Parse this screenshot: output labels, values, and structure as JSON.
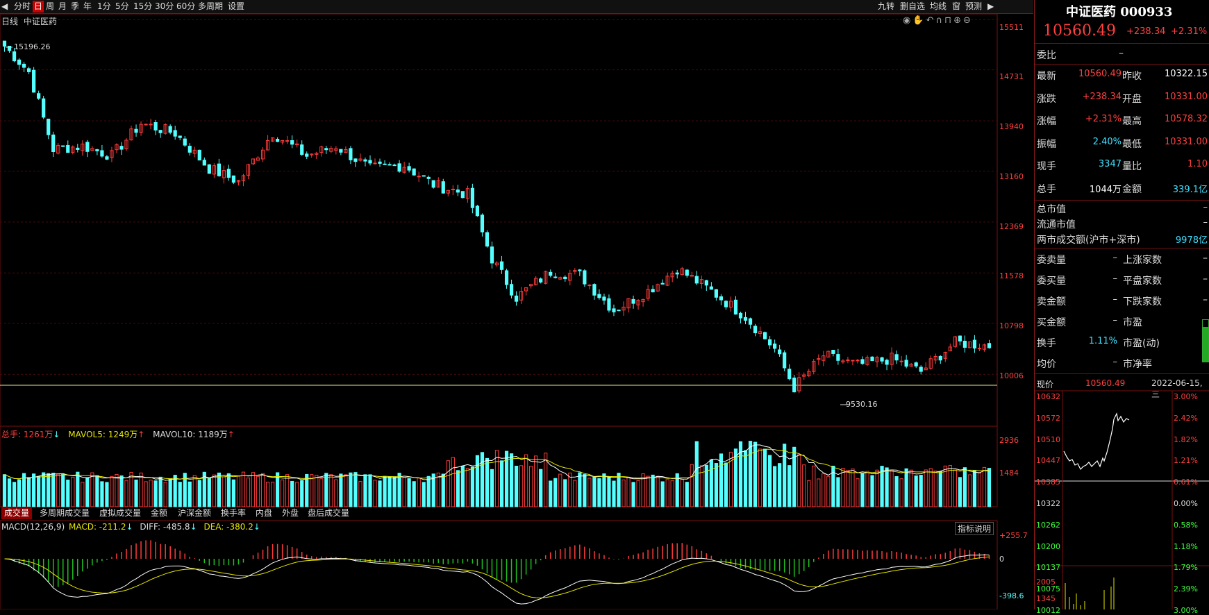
{
  "toolbar": {
    "items": [
      "分时",
      "日",
      "周",
      "月",
      "季",
      "年",
      "1分",
      "5分",
      "15分",
      "30分",
      "60分",
      "多周期",
      "设置"
    ],
    "active_index": 1,
    "right_items": [
      "九转",
      "删自选",
      "均线",
      "窗",
      "预测"
    ]
  },
  "chart": {
    "period_label": "日线",
    "index_name": "中证医药",
    "price_axis": [
      "15511",
      "14731",
      "13940",
      "13160",
      "12369",
      "11578",
      "10798",
      "10006"
    ],
    "high_label": "15196.26",
    "low_label": "9530.16",
    "ylim": [
      9200,
      15600
    ]
  },
  "volume": {
    "total": "总手: 1261万",
    "mavol5": "MAVOL5: 1249万",
    "mavol10": "MAVOL10: 1189万",
    "axis": [
      "2936",
      "1484"
    ]
  },
  "bottom_tabs": [
    "成交量",
    "多周期成交量",
    "虚拟成交量",
    "金额",
    "沪深金额",
    "换手率",
    "内盘",
    "外盘",
    "盘后成交量"
  ],
  "macd": {
    "label": "MACD(12,26,9)",
    "macd_val": "MACD: -211.2",
    "diff": "DIFF: -485.8",
    "dea": "DEA: -380.2",
    "explain": "指标说明",
    "axis": [
      "+255.7",
      "0",
      "-398.6"
    ]
  },
  "quote": {
    "name": "中证医药 000933",
    "price": "10560.49",
    "change": "+238.34",
    "pct": "+2.31%",
    "weibi_label": "委比",
    "weibi_val": "–",
    "rows": [
      {
        "l1": "最新",
        "v1": "10560.49",
        "l2": "昨收",
        "v2": "10322.15",
        "c1": "#ff4040",
        "c2": "#ffffff"
      },
      {
        "l1": "涨跌",
        "v1": "+238.34",
        "l2": "开盘",
        "v2": "10331.00",
        "c1": "#ff4040",
        "c2": "#ff4040"
      },
      {
        "l1": "涨幅",
        "v1": "+2.31%",
        "l2": "最高",
        "v2": "10578.32",
        "c1": "#ff4040",
        "c2": "#ff4040"
      },
      {
        "l1": "振幅",
        "v1": "2.40%",
        "l2": "最低",
        "v2": "10331.00",
        "c1": "#40e0ff",
        "c2": "#ff4040"
      },
      {
        "l1": "现手",
        "v1": "3347",
        "l2": "量比",
        "v2": "1.10",
        "c1": "#40e0ff",
        "c2": "#ff4040"
      },
      {
        "l1": "总手",
        "v1": "1044万",
        "l2": "金额",
        "v2": "339.1亿",
        "c1": "#ffffff",
        "c2": "#40e0ff"
      }
    ],
    "mkt": [
      {
        "l": "总市值",
        "v": "–"
      },
      {
        "l": "流通市值",
        "v": "–"
      },
      {
        "l": "两市成交额(沪市+深市)",
        "v": "9978亿"
      }
    ],
    "pairs": [
      {
        "l1": "委卖量",
        "v1": "–",
        "l2": "上涨家数",
        "v2": "–"
      },
      {
        "l1": "委买量",
        "v1": "–",
        "l2": "平盘家数",
        "v2": "–"
      },
      {
        "l1": "卖金额",
        "v1": "–",
        "l2": "下跌家数",
        "v2": "–"
      },
      {
        "l1": "买金额",
        "v1": "–",
        "l2": "市盈",
        "v2": ""
      },
      {
        "l1": "换手",
        "v1": "1.11%",
        "l2": "市盈(动)",
        "v2": ""
      },
      {
        "l1": "均价",
        "v1": "–",
        "l2": "市净率",
        "v2": ""
      }
    ]
  },
  "mini": {
    "label": "现价",
    "price": "10560.49",
    "date": "2022-06-15,三",
    "left_axis": [
      "10632",
      "10572",
      "10510",
      "10447",
      "10385",
      "10322",
      "10262",
      "10200",
      "10137",
      "10075",
      "10012"
    ],
    "right_axis": [
      "3.00%",
      "2.42%",
      "1.82%",
      "1.21%",
      "0.61%",
      "0.00%",
      "0.58%",
      "1.18%",
      "1.79%",
      "2.39%",
      "3.00%"
    ],
    "vol_axis": [
      "2005",
      "1345"
    ]
  },
  "colors": {
    "up": "#ff3b3b",
    "down": "#54ffff",
    "ma5": "#ffffff",
    "ma10": "#e6e600"
  },
  "icons": [
    "eye-icon",
    "hand-icon",
    "undo-icon",
    "magnet-icon",
    "lock-icon",
    "zoom-in-icon",
    "zoom-out-icon"
  ]
}
